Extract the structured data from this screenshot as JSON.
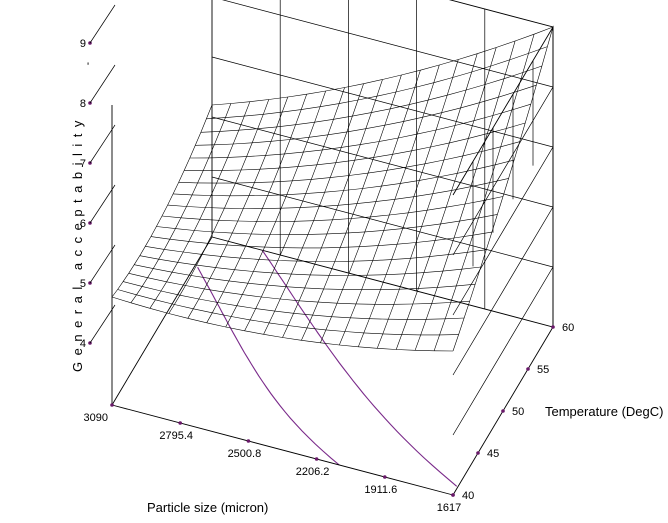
{
  "chart_data": {
    "type": "surface",
    "title": "",
    "xlabel": "Particle size (micron)",
    "ylabel": "Temperature (DegC)",
    "zlabel": "General acceptability",
    "x_ticks": [
      "3090",
      "2795.4",
      "2500.8",
      "2206.2",
      "1911.6",
      "1617"
    ],
    "y_ticks": [
      "40",
      "45",
      "50",
      "55",
      "60"
    ],
    "z_ticks": [
      "4",
      "5",
      "6",
      "7",
      "8",
      "9"
    ],
    "x_range": [
      3090,
      1617
    ],
    "y_range": [
      40,
      60
    ],
    "z_range": [
      4,
      9
    ],
    "surface_grid_size": 18,
    "surface_corners": {
      "x3090_y40": 5.8,
      "x3090_y60": 6.2,
      "x1617_y40": 6.4,
      "x1617_y60": 9.0
    },
    "contour_lines": "projected on base plane",
    "colors": {
      "mesh": "#000000",
      "contour": "#7a2a8a",
      "tick_dot": "#6a1a6a"
    },
    "stray_mark": "'"
  }
}
